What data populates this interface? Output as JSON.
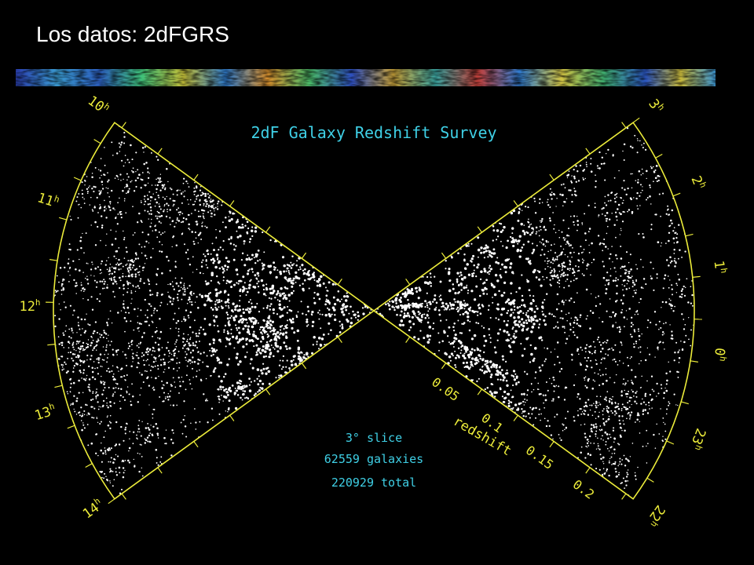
{
  "slide": {
    "title": "Los datos: 2dFGRS"
  },
  "figure": {
    "title": "2dF Galaxy Redshift Survey",
    "ra_labels_left": [
      {
        "hour": "10",
        "sup": "h"
      },
      {
        "hour": "11",
        "sup": "h"
      },
      {
        "hour": "12",
        "sup": "h"
      },
      {
        "hour": "13",
        "sup": "h"
      },
      {
        "hour": "14",
        "sup": "h"
      }
    ],
    "ra_labels_right": [
      {
        "hour": "3",
        "sup": "h"
      },
      {
        "hour": "2",
        "sup": "h"
      },
      {
        "hour": "1",
        "sup": "h"
      },
      {
        "hour": "0",
        "sup": "h"
      },
      {
        "hour": "23",
        "sup": "h"
      },
      {
        "hour": "22",
        "sup": "h"
      }
    ],
    "redshift_ticks": [
      "0.05",
      "0.1",
      "0.15",
      "0.2"
    ],
    "redshift_axis_label": "redshift",
    "info_lines": [
      "3° slice",
      "62559 galaxies",
      "220929 total"
    ],
    "colors": {
      "axes": "#ecec3a",
      "title": "#3fd0e6",
      "info": "#3fd0e6",
      "galaxies": "#ffffff",
      "background": "#000000"
    }
  }
}
